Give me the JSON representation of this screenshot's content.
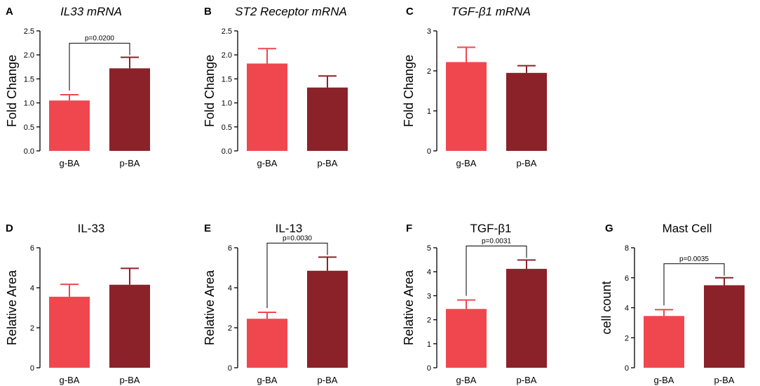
{
  "colors": {
    "g-BA": "#f0474f",
    "p-BA": "#8b2229"
  },
  "chart_data": [
    {
      "panel": "A",
      "type": "bar",
      "title": "IL33 mRNA",
      "title_italic": true,
      "ylabel": "Fold Change",
      "ylim": [
        0,
        2.5
      ],
      "yticks": [
        "0.0",
        "0.5",
        "1.0",
        "1.5",
        "2.0",
        "2.5"
      ],
      "categories": [
        "g-BA",
        "p-BA"
      ],
      "values": [
        1.05,
        1.72
      ],
      "errors": [
        0.12,
        0.23
      ],
      "pvalue": "p=0.0200"
    },
    {
      "panel": "B",
      "type": "bar",
      "title": "ST2 Receptor mRNA",
      "title_italic": true,
      "ylabel": "Fold Change",
      "ylim": [
        0,
        2.5
      ],
      "yticks": [
        "0.0",
        "0.5",
        "1.0",
        "1.5",
        "2.0",
        "2.5"
      ],
      "categories": [
        "g-BA",
        "p-BA"
      ],
      "values": [
        1.82,
        1.32
      ],
      "errors": [
        0.31,
        0.24
      ],
      "pvalue": null
    },
    {
      "panel": "C",
      "type": "bar",
      "title": "TGF-β1 mRNA",
      "title_italic": true,
      "ylabel": "Fold Change",
      "ylim": [
        0,
        3
      ],
      "yticks": [
        "0",
        "1",
        "2",
        "3"
      ],
      "categories": [
        "g-BA",
        "p-BA"
      ],
      "values": [
        2.22,
        1.95
      ],
      "errors": [
        0.37,
        0.18
      ],
      "pvalue": null
    },
    {
      "panel": "D",
      "type": "bar",
      "title": "IL-33",
      "title_italic": false,
      "ylabel": "Relative Area",
      "ylim": [
        0,
        6
      ],
      "yticks": [
        "0",
        "2",
        "4",
        "6"
      ],
      "categories": [
        "g-BA",
        "p-BA"
      ],
      "values": [
        3.55,
        4.15
      ],
      "errors": [
        0.62,
        0.82
      ],
      "pvalue": null
    },
    {
      "panel": "E",
      "type": "bar",
      "title": "IL-13",
      "title_italic": false,
      "ylabel": "Relative Area",
      "ylim": [
        0,
        6
      ],
      "yticks": [
        "0",
        "2",
        "4",
        "6"
      ],
      "categories": [
        "g-BA",
        "p-BA"
      ],
      "values": [
        2.45,
        4.85
      ],
      "errors": [
        0.32,
        0.68
      ],
      "pvalue": "p=0.0030"
    },
    {
      "panel": "F",
      "type": "bar",
      "title": "TGF-β1",
      "title_italic": false,
      "ylabel": "Relative Area",
      "ylim": [
        0,
        5
      ],
      "yticks": [
        "0",
        "1",
        "2",
        "3",
        "4",
        "5"
      ],
      "categories": [
        "g-BA",
        "p-BA"
      ],
      "values": [
        2.45,
        4.12
      ],
      "errors": [
        0.37,
        0.37
      ],
      "pvalue": "p=0.0031"
    },
    {
      "panel": "G",
      "type": "bar",
      "title": "Mast Cell",
      "title_italic": false,
      "ylabel": "cell count",
      "ylim": [
        0,
        8
      ],
      "yticks": [
        "0",
        "2",
        "4",
        "6",
        "8"
      ],
      "categories": [
        "g-BA",
        "p-BA"
      ],
      "values": [
        3.45,
        5.5
      ],
      "errors": [
        0.42,
        0.5
      ],
      "pvalue": "p=0.0035"
    }
  ]
}
